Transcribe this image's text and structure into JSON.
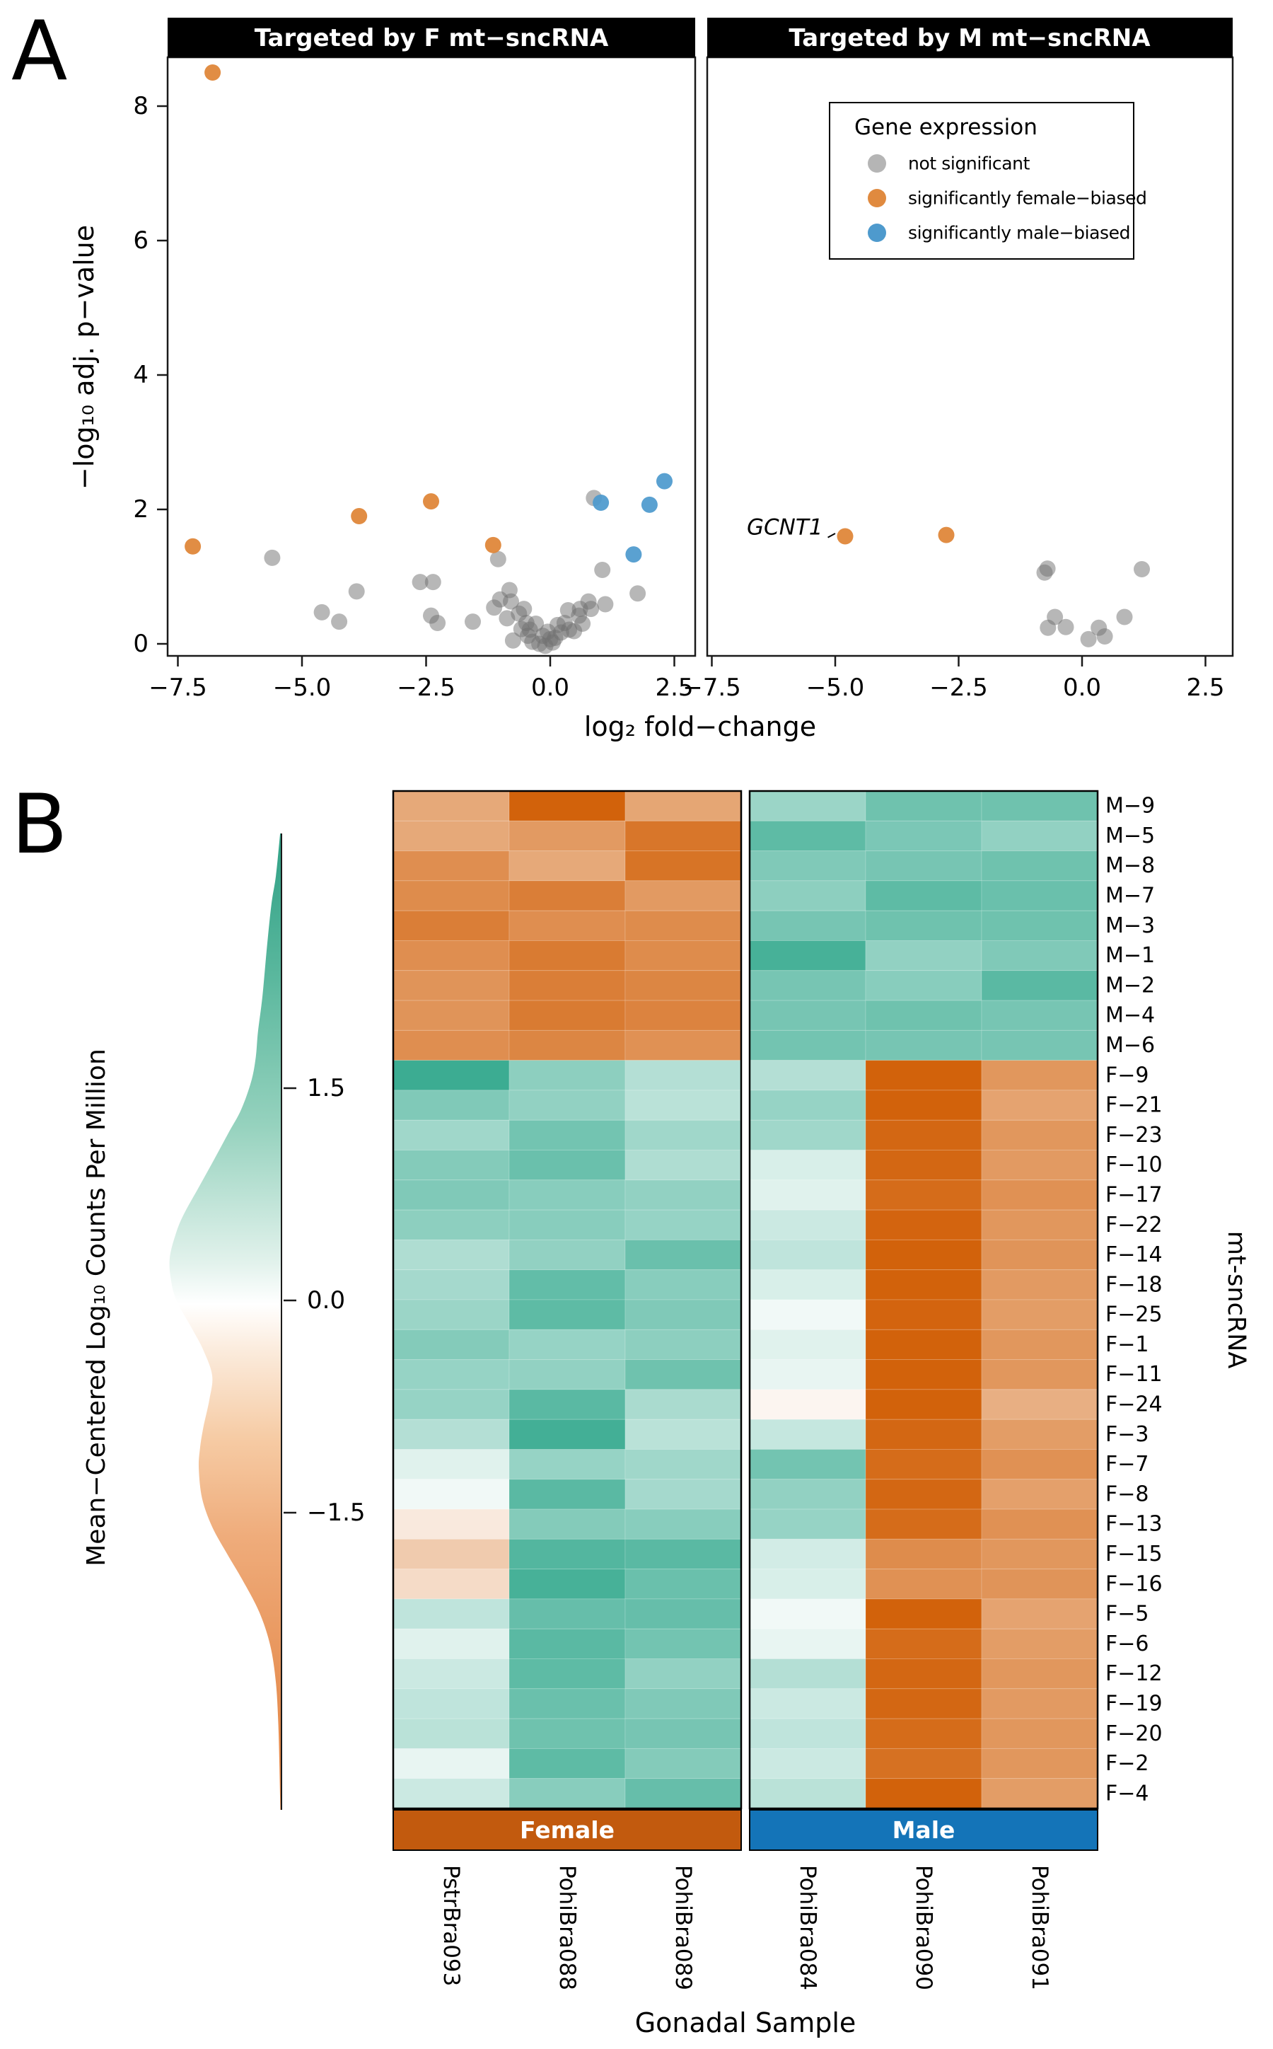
{
  "figure": {
    "panel_a_label": "A",
    "panel_b_label": "B"
  },
  "colors": {
    "point_gray": "#6F6F6F",
    "point_orange": "#DF8436",
    "point_blue": "#4E9ACD",
    "heat_green": "#1FA082",
    "heat_orange": "#D2620B",
    "female_bar": "#C25A0E",
    "male_bar": "#1474B8"
  },
  "legend": {
    "title": "Gene expression",
    "items": [
      {
        "key": "not_significant",
        "label": "not significant",
        "color": "#B5B5B5"
      },
      {
        "key": "female_biased",
        "label": "significantly female−biased",
        "color": "#E08A3F"
      },
      {
        "key": "male_biased",
        "label": "significantly male−biased",
        "color": "#4E9ACD"
      }
    ]
  },
  "chart_data": [
    {
      "id": "volcano_targeted_by_F",
      "type": "scatter",
      "title": "Targeted by F mt−sncRNA",
      "xlabel": "log₂ fold−change",
      "ylabel": "−log₁₀ adj. p−value",
      "xlim": [
        -7.7,
        3.1
      ],
      "ylim": [
        -0.2,
        8.75
      ],
      "xticks": [
        -7.5,
        -5.0,
        -2.5,
        0.0,
        2.5
      ],
      "xtick_labels": [
        "−7.5",
        "−5.0",
        "−2.5",
        "0.0",
        "2.5"
      ],
      "yticks": [
        0,
        2,
        4,
        6,
        8
      ],
      "ytick_labels": [
        "0",
        "2",
        "4",
        "6",
        "8"
      ],
      "series": [
        {
          "key": "not_significant",
          "name": "not significant",
          "color": "#6F6F6F",
          "opacity": 0.5,
          "points": [
            [
              -5.6,
              1.28
            ],
            [
              -4.6,
              0.47
            ],
            [
              -4.25,
              0.33
            ],
            [
              -3.9,
              0.78
            ],
            [
              -2.62,
              0.92
            ],
            [
              -2.36,
              0.92
            ],
            [
              -2.4,
              0.42
            ],
            [
              -2.27,
              0.31
            ],
            [
              -1.56,
              0.33
            ],
            [
              -1.13,
              0.54
            ],
            [
              -1.05,
              1.26
            ],
            [
              -1.01,
              0.66
            ],
            [
              -0.87,
              0.38
            ],
            [
              -0.82,
              0.8
            ],
            [
              -0.79,
              0.63
            ],
            [
              -0.75,
              0.05
            ],
            [
              -0.63,
              0.45
            ],
            [
              -0.58,
              0.22
            ],
            [
              -0.53,
              0.52
            ],
            [
              -0.48,
              0.31
            ],
            [
              -0.45,
              0.12
            ],
            [
              -0.41,
              0.21
            ],
            [
              -0.36,
              0.03
            ],
            [
              -0.29,
              0.3
            ],
            [
              -0.22,
              0.0
            ],
            [
              -0.15,
              0.12
            ],
            [
              -0.1,
              -0.03
            ],
            [
              -0.05,
              0.18
            ],
            [
              0.0,
              0.07
            ],
            [
              0.05,
              0.02
            ],
            [
              0.1,
              0.09
            ],
            [
              0.15,
              0.28
            ],
            [
              0.22,
              0.17
            ],
            [
              0.29,
              0.31
            ],
            [
              0.36,
              0.5
            ],
            [
              0.38,
              0.21
            ],
            [
              0.48,
              0.19
            ],
            [
              0.58,
              0.42
            ],
            [
              0.6,
              0.52
            ],
            [
              0.65,
              0.3
            ],
            [
              0.77,
              0.63
            ],
            [
              0.82,
              0.52
            ],
            [
              0.88,
              2.17
            ],
            [
              1.05,
              1.1
            ],
            [
              1.11,
              0.59
            ],
            [
              1.76,
              0.75
            ]
          ]
        },
        {
          "key": "female_biased",
          "name": "significantly female−biased",
          "color": "#DF8436",
          "opacity": 0.93,
          "points": [
            [
              -6.8,
              8.5
            ],
            [
              -7.2,
              1.45
            ],
            [
              -3.85,
              1.9
            ],
            [
              -2.4,
              2.12
            ],
            [
              -1.15,
              1.47
            ]
          ]
        },
        {
          "key": "male_biased",
          "name": "significantly male−biased",
          "color": "#4E9ACD",
          "opacity": 0.93,
          "points": [
            [
              1.02,
              2.1
            ],
            [
              2.0,
              2.07
            ],
            [
              2.3,
              2.42
            ],
            [
              1.68,
              1.33
            ]
          ]
        }
      ]
    },
    {
      "id": "volcano_targeted_by_M",
      "type": "scatter",
      "title": "Targeted by M mt−sncRNA",
      "xlabel": "log₂ fold−change",
      "ylabel": "−log₁₀ adj. p−value",
      "xlim": [
        -7.7,
        3.1
      ],
      "ylim": [
        -0.2,
        8.75
      ],
      "xticks": [
        -7.5,
        -5.0,
        -2.5,
        0.0,
        2.5
      ],
      "xtick_labels": [
        "−7.5",
        "−5.0",
        "−2.5",
        "0.0",
        "2.5"
      ],
      "annotation": {
        "text": "GCNT1",
        "text_x": -5.25,
        "text_y": 1.73,
        "point_x": -4.8,
        "point_y": 1.6
      },
      "series": [
        {
          "key": "not_significant",
          "name": "not significant",
          "color": "#6F6F6F",
          "opacity": 0.5,
          "points": [
            [
              -0.76,
              1.06
            ],
            [
              -0.7,
              1.12
            ],
            [
              1.21,
              1.11
            ],
            [
              -0.55,
              0.4
            ],
            [
              -0.69,
              0.24
            ],
            [
              -0.33,
              0.25
            ],
            [
              0.13,
              0.07
            ],
            [
              0.34,
              0.24
            ],
            [
              0.46,
              0.11
            ],
            [
              0.86,
              0.4
            ]
          ]
        },
        {
          "key": "female_biased",
          "name": "significantly female−biased",
          "color": "#DF8436",
          "opacity": 0.93,
          "points": [
            [
              -4.8,
              1.6
            ],
            [
              -2.75,
              1.62
            ]
          ]
        },
        {
          "key": "male_biased",
          "name": "significantly male−biased",
          "color": "#4E9ACD",
          "opacity": 0.93,
          "points": []
        }
      ]
    },
    {
      "id": "expression_density_scale",
      "type": "area",
      "orientation": "vertical",
      "axis_label": "Mean−Centered Log₁₀ Counts Per Million",
      "ticks": [
        1.5,
        0.0,
        -1.5
      ],
      "tick_labels": [
        "1.5",
        "0.0",
        "−1.5"
      ],
      "value_range": [
        -3.6,
        3.3
      ],
      "profile": [
        [
          3.3,
          0.012
        ],
        [
          3.0,
          0.05
        ],
        [
          2.8,
          0.09
        ],
        [
          2.5,
          0.13
        ],
        [
          2.15,
          0.17
        ],
        [
          1.9,
          0.21
        ],
        [
          1.72,
          0.23
        ],
        [
          1.55,
          0.27
        ],
        [
          1.35,
          0.36
        ],
        [
          1.19,
          0.47
        ],
        [
          1.0,
          0.6
        ],
        [
          0.8,
          0.74
        ],
        [
          0.6,
          0.88
        ],
        [
          0.46,
          0.95
        ],
        [
          0.3,
          1.0
        ],
        [
          0.15,
          0.99
        ],
        [
          0.0,
          0.94
        ],
        [
          -0.2,
          0.8
        ],
        [
          -0.35,
          0.7
        ],
        [
          -0.53,
          0.62
        ],
        [
          -0.7,
          0.645
        ],
        [
          -0.9,
          0.7
        ],
        [
          -1.05,
          0.73
        ],
        [
          -1.19,
          0.74
        ],
        [
          -1.4,
          0.71
        ],
        [
          -1.6,
          0.62
        ],
        [
          -1.8,
          0.48
        ],
        [
          -1.96,
          0.36
        ],
        [
          -2.2,
          0.2
        ],
        [
          -2.44,
          0.1
        ],
        [
          -2.7,
          0.05
        ],
        [
          -3.0,
          0.028
        ],
        [
          -3.3,
          0.018
        ],
        [
          -3.6,
          0.01
        ]
      ],
      "gradient_stops": [
        {
          "at": 0,
          "color": "#2FA085"
        },
        {
          "at": 0.15,
          "color": "#5BB89E"
        },
        {
          "at": 0.3,
          "color": "#96D2BE"
        },
        {
          "at": 0.44,
          "color": "#E2F2EC"
        },
        {
          "at": 0.482,
          "color": "#FFFFFF"
        },
        {
          "at": 0.53,
          "color": "#FBEBDC"
        },
        {
          "at": 0.62,
          "color": "#F6CBA4"
        },
        {
          "at": 0.72,
          "color": "#EFAC7B"
        },
        {
          "at": 0.85,
          "color": "#E8955B"
        },
        {
          "at": 1,
          "color": "#E07F3C"
        }
      ]
    },
    {
      "id": "heatmap_mt_sncRNA",
      "type": "heatmap",
      "xlabel": "Gonadal Sample",
      "ylabel": "mt-sncRNA",
      "value_scale_cap": 2.3,
      "col_groups": [
        {
          "label": "Female",
          "color": "#C25A0E",
          "cols": [
            "PstrBra093",
            "PohiBra088",
            "PohiBra089"
          ]
        },
        {
          "label": "Male",
          "color": "#1474B8",
          "cols": [
            "PohiBra084",
            "PohiBra090",
            "PohiBra091"
          ]
        }
      ],
      "rows": [
        "M−9",
        "M−5",
        "M−8",
        "M−7",
        "M−3",
        "M−1",
        "M−2",
        "M−4",
        "M−6",
        "F−9",
        "F−21",
        "F−23",
        "F−10",
        "F−17",
        "F−22",
        "F−14",
        "F−18",
        "F−25",
        "F−1",
        "F−11",
        "F−24",
        "F−3",
        "F−7",
        "F−8",
        "F−13",
        "F−15",
        "F−16",
        "F−5",
        "F−6",
        "F−12",
        "F−19",
        "F−20",
        "F−2",
        "F−4"
      ],
      "values": [
        [
          -1.0,
          -2.3,
          -1.05,
          0.75,
          1.25,
          1.25
        ],
        [
          -1.0,
          -1.25,
          -1.9,
          1.45,
          1.1,
          0.85
        ],
        [
          -1.45,
          -1.0,
          -1.95,
          1.05,
          1.15,
          1.25
        ],
        [
          -1.5,
          -1.75,
          -1.25,
          0.9,
          1.45,
          1.3
        ],
        [
          -1.75,
          -1.45,
          -1.5,
          1.15,
          1.25,
          1.25
        ],
        [
          -1.45,
          -1.8,
          -1.5,
          1.75,
          0.85,
          1.05
        ],
        [
          -1.35,
          -1.75,
          -1.6,
          1.15,
          0.95,
          1.5
        ],
        [
          -1.35,
          -1.8,
          -1.65,
          1.15,
          1.25,
          1.15
        ],
        [
          -1.45,
          -1.6,
          -1.4,
          1.2,
          1.15,
          1.15
        ],
        [
          1.9,
          0.9,
          0.5,
          0.5,
          -2.3,
          -1.3
        ],
        [
          1.05,
          0.85,
          0.45,
          0.8,
          -2.4,
          -1.1
        ],
        [
          0.7,
          1.2,
          0.7,
          0.7,
          -2.2,
          -1.3
        ],
        [
          1.0,
          1.3,
          0.55,
          0.2,
          -2.2,
          -1.25
        ],
        [
          1.05,
          0.95,
          0.85,
          0.15,
          -2.1,
          -1.4
        ],
        [
          0.9,
          0.95,
          0.8,
          0.3,
          -2.25,
          -1.3
        ],
        [
          0.55,
          0.85,
          1.3,
          0.4,
          -2.4,
          -1.35
        ],
        [
          0.65,
          1.4,
          0.95,
          0.2,
          -2.3,
          -1.25
        ],
        [
          0.75,
          1.45,
          1.05,
          0.05,
          -2.25,
          -1.2
        ],
        [
          1.0,
          0.8,
          0.9,
          0.15,
          -2.5,
          -1.3
        ],
        [
          0.8,
          0.85,
          1.25,
          0.1,
          -2.4,
          -1.3
        ],
        [
          0.8,
          1.5,
          0.6,
          -0.05,
          -2.5,
          -0.9
        ],
        [
          0.5,
          1.8,
          0.45,
          0.35,
          -2.2,
          -1.2
        ],
        [
          0.15,
          0.8,
          0.7,
          1.2,
          -2.1,
          -1.4
        ],
        [
          0.05,
          1.5,
          0.65,
          0.85,
          -2.2,
          -1.15
        ],
        [
          -0.15,
          1.0,
          0.95,
          0.8,
          -2.1,
          -1.4
        ],
        [
          -0.5,
          1.6,
          1.5,
          0.25,
          -1.5,
          -1.3
        ],
        [
          -0.3,
          1.75,
          1.3,
          0.2,
          -1.4,
          -1.35
        ],
        [
          0.4,
          1.35,
          1.35,
          0.05,
          -2.3,
          -1.1
        ],
        [
          0.15,
          1.5,
          1.2,
          0.1,
          -2.1,
          -1.2
        ],
        [
          0.3,
          1.45,
          0.85,
          0.5,
          -2.2,
          -1.3
        ],
        [
          0.4,
          1.3,
          1.05,
          0.3,
          -2.2,
          -1.25
        ],
        [
          0.45,
          1.25,
          1.15,
          0.4,
          -2.1,
          -1.3
        ],
        [
          0.1,
          1.45,
          1.0,
          0.3,
          -2.0,
          -1.3
        ],
        [
          0.3,
          0.95,
          1.35,
          0.45,
          -2.3,
          -1.2
        ]
      ]
    }
  ]
}
